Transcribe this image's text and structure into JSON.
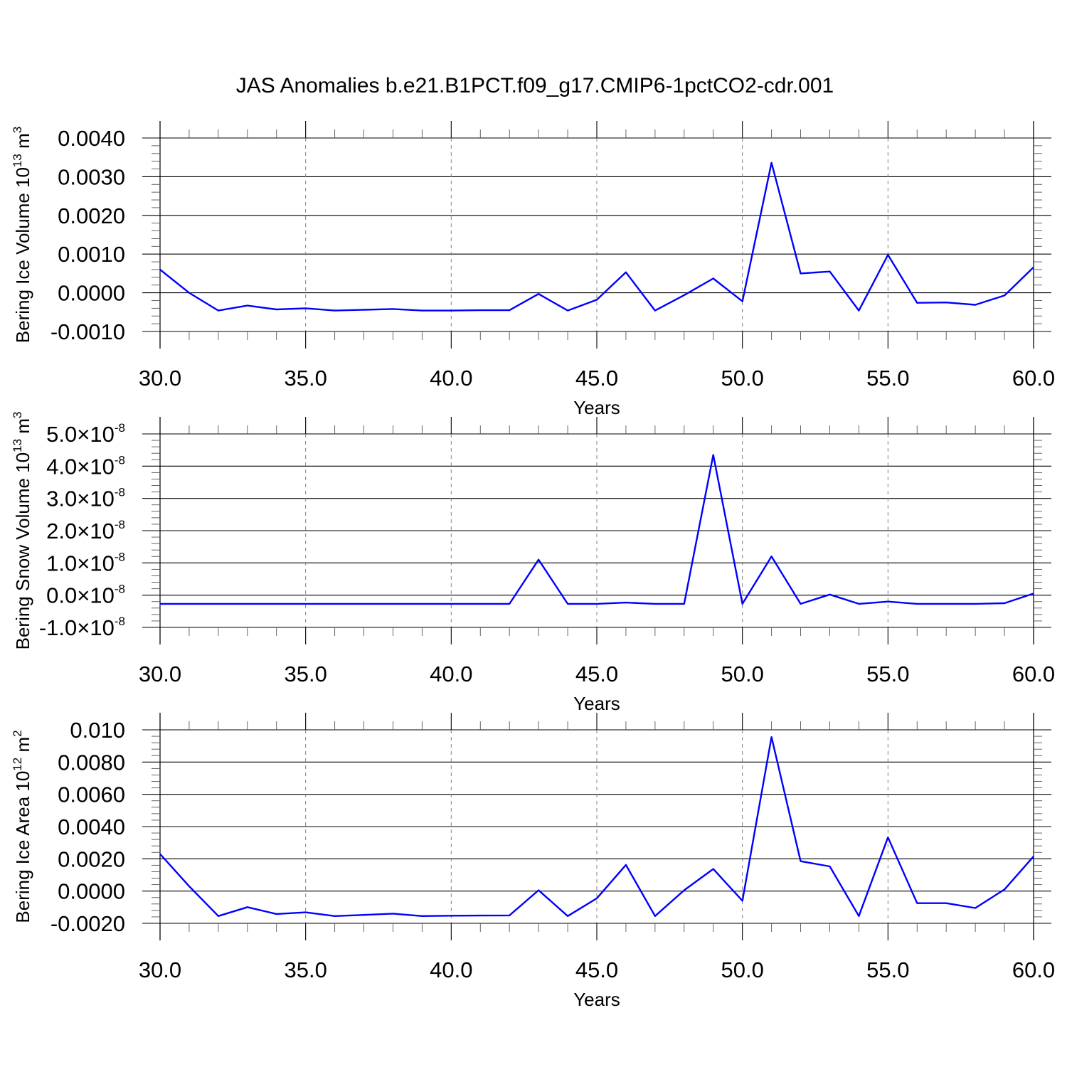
{
  "title": "JAS Anomalies b.e21.B1PCT.f09_g17.CMIP6-1pctCO2-cdr.001",
  "colors": {
    "line": "#0000ff",
    "axis": "#000000",
    "grid": "#808080"
  },
  "chart_data": [
    {
      "type": "line",
      "xlabel": "Years",
      "ylabel": {
        "text": "Bering Ice Volume 10",
        "exp": "13",
        "unit": " m",
        "unit_exp": "3"
      },
      "xlim": [
        30,
        60
      ],
      "ylim": [
        -0.001,
        0.004
      ],
      "xticks": [
        30,
        35,
        40,
        45,
        50,
        55,
        60
      ],
      "xtick_labels": [
        "30.0",
        "35.0",
        "40.0",
        "45.0",
        "50.0",
        "55.0",
        "60.0"
      ],
      "yticks": [
        -0.001,
        0.0,
        0.001,
        0.002,
        0.003,
        0.004
      ],
      "ytick_labels": [
        "-0.0010",
        "0.0000",
        "0.0010",
        "0.0020",
        "0.0030",
        "0.0040"
      ],
      "grid": "vertical dashed",
      "series": [
        {
          "x": [
            30,
            31,
            32,
            33,
            34,
            35,
            36,
            37,
            38,
            39,
            40,
            41,
            42,
            43,
            44,
            45,
            46,
            47,
            48,
            49,
            50,
            51,
            52,
            53,
            54,
            55,
            56,
            57,
            58,
            59,
            60
          ],
          "values": [
            0.0006,
            0.0,
            -0.00046,
            -0.00033,
            -0.00043,
            -0.0004,
            -0.00046,
            -0.00044,
            -0.00042,
            -0.00046,
            -0.00046,
            -0.00045,
            -0.00045,
            -3e-05,
            -0.00046,
            -0.00018,
            0.00053,
            -0.00046,
            -6e-05,
            0.00037,
            -0.00022,
            0.00336,
            0.0005,
            0.00055,
            -0.00046,
            0.00098,
            -0.00026,
            -0.00025,
            -0.00031,
            -7e-05,
            0.00066
          ]
        }
      ]
    },
    {
      "type": "line",
      "xlabel": "Years",
      "ylabel": {
        "text": "Bering Snow Volume 10",
        "exp": "13",
        "unit": " m",
        "unit_exp": "3"
      },
      "xlim": [
        30,
        60
      ],
      "ylim": [
        -1e-08,
        5e-08
      ],
      "xticks": [
        30,
        35,
        40,
        45,
        50,
        55,
        60
      ],
      "xtick_labels": [
        "30.0",
        "35.0",
        "40.0",
        "45.0",
        "50.0",
        "55.0",
        "60.0"
      ],
      "yticks": [
        -1e-08,
        0.0,
        1e-08,
        2e-08,
        3e-08,
        4e-08,
        5e-08
      ],
      "ytick_labels": [
        {
          "m": "-1.0",
          "x": "×",
          "b": "10",
          "e": "-8"
        },
        {
          "m": "0.0",
          "x": "×",
          "b": "10",
          "e": "-8"
        },
        {
          "m": "1.0",
          "x": "×",
          "b": "10",
          "e": "-8"
        },
        {
          "m": "2.0",
          "x": "×",
          "b": "10",
          "e": "-8"
        },
        {
          "m": "3.0",
          "x": "×",
          "b": "10",
          "e": "-8"
        },
        {
          "m": "4.0",
          "x": "×",
          "b": "10",
          "e": "-8"
        },
        {
          "m": "5.0",
          "x": "×",
          "b": "10",
          "e": "-8"
        }
      ],
      "grid": "vertical dashed",
      "series": [
        {
          "x": [
            30,
            31,
            32,
            33,
            34,
            35,
            36,
            37,
            38,
            39,
            40,
            41,
            42,
            43,
            44,
            45,
            46,
            47,
            48,
            49,
            50,
            51,
            52,
            53,
            54,
            55,
            56,
            57,
            58,
            59,
            60
          ],
          "values": [
            -2.7e-09,
            -2.7e-09,
            -2.7e-09,
            -2.7e-09,
            -2.7e-09,
            -2.7e-09,
            -2.7e-09,
            -2.7e-09,
            -2.7e-09,
            -2.7e-09,
            -2.7e-09,
            -2.7e-09,
            -2.7e-09,
            1.1e-08,
            -2.7e-09,
            -2.7e-09,
            -2.3e-09,
            -2.7e-09,
            -2.7e-09,
            4.35e-08,
            -2.7e-09,
            1.2e-08,
            -2.7e-09,
            2e-10,
            -2.7e-09,
            -2e-09,
            -2.7e-09,
            -2.7e-09,
            -2.7e-09,
            -2.5e-09,
            5e-10
          ]
        }
      ]
    },
    {
      "type": "line",
      "xlabel": "Years",
      "ylabel": {
        "text": "Bering Ice Area 10",
        "exp": "12",
        "unit": " m",
        "unit_exp": "2"
      },
      "xlim": [
        30,
        60
      ],
      "ylim": [
        -0.002,
        0.01
      ],
      "xticks": [
        30,
        35,
        40,
        45,
        50,
        55,
        60
      ],
      "xtick_labels": [
        "30.0",
        "35.0",
        "40.0",
        "45.0",
        "50.0",
        "55.0",
        "60.0"
      ],
      "yticks": [
        -0.002,
        0.0,
        0.002,
        0.004,
        0.006,
        0.008,
        0.01
      ],
      "ytick_labels": [
        "-0.0020",
        "0.0000",
        "0.0020",
        "0.0040",
        "0.0060",
        "0.0080",
        "0.010"
      ],
      "grid": "vertical dashed",
      "series": [
        {
          "x": [
            30,
            31,
            32,
            33,
            34,
            35,
            36,
            37,
            38,
            39,
            40,
            41,
            42,
            43,
            44,
            45,
            46,
            47,
            48,
            49,
            50,
            51,
            52,
            53,
            54,
            55,
            56,
            57,
            58,
            59,
            60
          ],
          "values": [
            0.0023,
            0.0003,
            -0.00155,
            -0.001,
            -0.00142,
            -0.00132,
            -0.00155,
            -0.00148,
            -0.0014,
            -0.00155,
            -0.00153,
            -0.00152,
            -0.00151,
            5e-05,
            -0.00155,
            -0.00045,
            0.00162,
            -0.00155,
            5e-05,
            0.00137,
            -0.0006,
            0.00955,
            0.00185,
            0.00153,
            -0.00155,
            0.00333,
            -0.00075,
            -0.00075,
            -0.00105,
            0.0001,
            0.00215
          ]
        }
      ]
    }
  ]
}
